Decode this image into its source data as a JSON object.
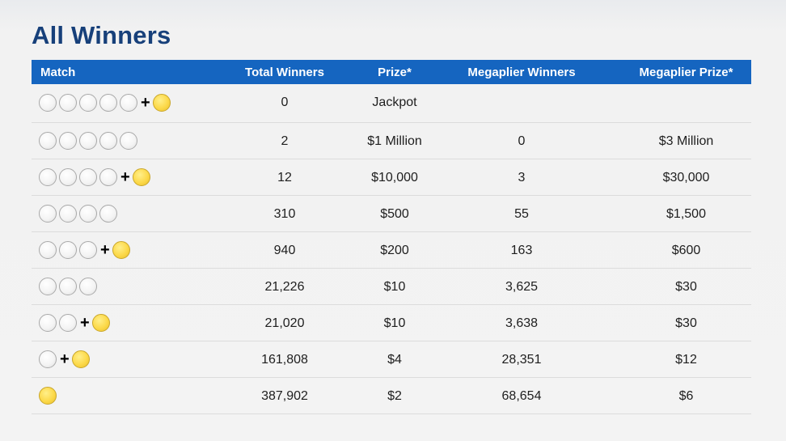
{
  "page": {
    "title": "All Winners"
  },
  "table": {
    "headers": [
      "Match",
      "Total Winners",
      "Prize*",
      "Megaplier Winners",
      "Megaplier Prize*"
    ],
    "rows": [
      {
        "white_balls": 5,
        "mega_ball": true,
        "total_winners": "0",
        "prize": "Jackpot",
        "megaplier_winners": "",
        "megaplier_prize": ""
      },
      {
        "white_balls": 5,
        "mega_ball": false,
        "total_winners": "2",
        "prize": "$1 Million",
        "megaplier_winners": "0",
        "megaplier_prize": "$3 Million"
      },
      {
        "white_balls": 4,
        "mega_ball": true,
        "total_winners": "12",
        "prize": "$10,000",
        "megaplier_winners": "3",
        "megaplier_prize": "$30,000"
      },
      {
        "white_balls": 4,
        "mega_ball": false,
        "total_winners": "310",
        "prize": "$500",
        "megaplier_winners": "55",
        "megaplier_prize": "$1,500"
      },
      {
        "white_balls": 3,
        "mega_ball": true,
        "total_winners": "940",
        "prize": "$200",
        "megaplier_winners": "163",
        "megaplier_prize": "$600"
      },
      {
        "white_balls": 3,
        "mega_ball": false,
        "total_winners": "21,226",
        "prize": "$10",
        "megaplier_winners": "3,625",
        "megaplier_prize": "$30"
      },
      {
        "white_balls": 2,
        "mega_ball": true,
        "total_winners": "21,020",
        "prize": "$10",
        "megaplier_winners": "3,638",
        "megaplier_prize": "$30"
      },
      {
        "white_balls": 1,
        "mega_ball": true,
        "total_winners": "161,808",
        "prize": "$4",
        "megaplier_winners": "28,351",
        "megaplier_prize": "$12"
      },
      {
        "white_balls": 0,
        "mega_ball": true,
        "total_winners": "387,902",
        "prize": "$2",
        "megaplier_winners": "68,654",
        "megaplier_prize": "$6"
      }
    ]
  },
  "icons": {
    "white_ball": "white-ball-icon",
    "mega_ball": "mega-ball-icon",
    "plus": "plus-icon"
  },
  "colors": {
    "title": "#17407a",
    "header_bg": "#1565c0",
    "header_text": "#ffffff",
    "mega_ball": "#fcd94a",
    "white_ball_border": "#a9a9a9",
    "row_divider": "#dcdcdc",
    "background": "#f3f3f3"
  }
}
